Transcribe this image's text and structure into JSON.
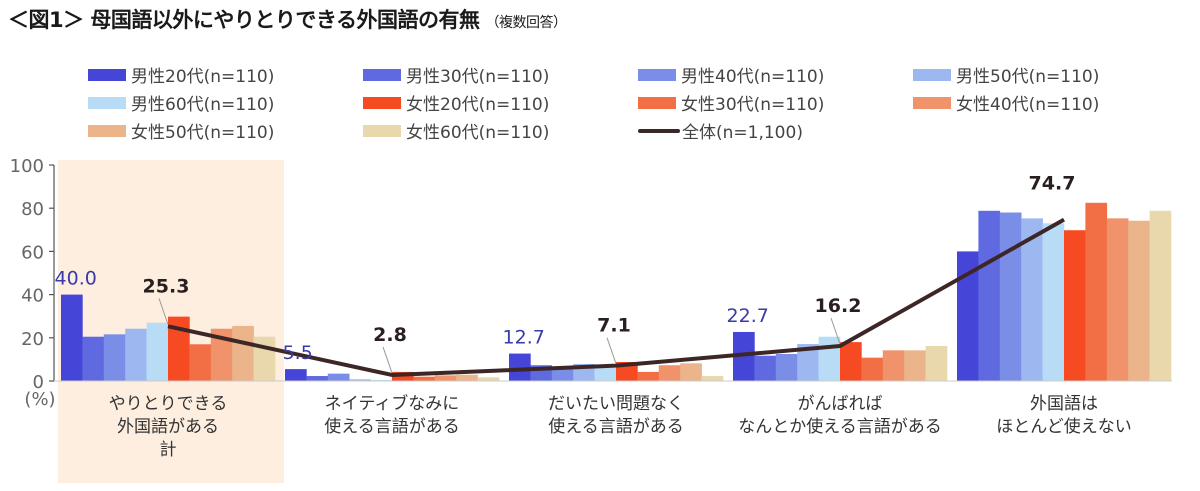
{
  "title": {
    "main": "＜図1＞ 母国語以外にやりとりできる外国語の有無",
    "note": "（複数回答）"
  },
  "colors": {
    "highlight_bg": "#fdeee0",
    "overall_line": "#3d2626",
    "male_label": "#3a3aa8",
    "overall_label": "#2a1f1f"
  },
  "chart_data": {
    "type": "bar",
    "title": "母国語以外にやりとりできる外国語の有無（複数回答）",
    "xlabel": "",
    "ylabel": "(%)",
    "ylim": [
      0,
      100
    ],
    "yticks": [
      0,
      20,
      40,
      60,
      80,
      100
    ],
    "grid": false,
    "legend_position": "top",
    "categories": [
      "やりとりできる\n外国語がある\n計",
      "ネイティブなみに\n使える言語がある",
      "だいたい問題なく\n使える言語がある",
      "がんばれば\nなんとか使える言語がある",
      "外国語は\nほとんど使えない"
    ],
    "highlighted_category": 0,
    "series": [
      {
        "name": "男性20代(n=110)",
        "color": "#4545d8",
        "values": [
          40.0,
          5.5,
          12.7,
          22.7,
          60.0
        ]
      },
      {
        "name": "男性30代(n=110)",
        "color": "#5f6ae0",
        "values": [
          20.5,
          2.3,
          7.3,
          11.7,
          78.8
        ]
      },
      {
        "name": "男性40代(n=110)",
        "color": "#7a8ee8",
        "values": [
          21.6,
          3.4,
          6.6,
          12.5,
          78.0
        ]
      },
      {
        "name": "男性50代(n=110)",
        "color": "#9db8f0",
        "values": [
          24.2,
          0.8,
          7.9,
          17.1,
          75.3
        ]
      },
      {
        "name": "男性60代(n=110)",
        "color": "#b8dcf5",
        "values": [
          27.0,
          0.5,
          6.0,
          20.5,
          73.0
        ]
      },
      {
        "name": "女性20代(n=110)",
        "color": "#f54a22",
        "values": [
          29.8,
          4.2,
          8.8,
          18.0,
          69.8
        ]
      },
      {
        "name": "女性30代(n=110)",
        "color": "#f26e45",
        "values": [
          17.0,
          2.0,
          4.2,
          10.8,
          82.5
        ]
      },
      {
        "name": "女性40代(n=110)",
        "color": "#f0936a",
        "values": [
          24.2,
          2.6,
          7.3,
          14.2,
          75.3
        ]
      },
      {
        "name": "女性50代(n=110)",
        "color": "#ecb48a",
        "values": [
          25.5,
          2.9,
          8.2,
          14.2,
          74.2
        ]
      },
      {
        "name": "女性60代(n=110)",
        "color": "#e8d8ac",
        "values": [
          20.5,
          1.7,
          2.3,
          16.2,
          78.8
        ]
      }
    ],
    "line_series": {
      "name": "全体(n=1,100)",
      "color": "#3d2626",
      "values": [
        25.3,
        2.8,
        7.1,
        16.2,
        74.7
      ]
    },
    "data_labels": {
      "male20": [
        "40.0",
        "5.5",
        "12.7",
        "22.7"
      ],
      "overall": [
        "25.3",
        "2.8",
        "7.1",
        "16.2",
        "74.7"
      ]
    },
    "tick_labels": [
      "0",
      "20",
      "40",
      "60",
      "80",
      "100"
    ],
    "unit_label": "(%)"
  }
}
